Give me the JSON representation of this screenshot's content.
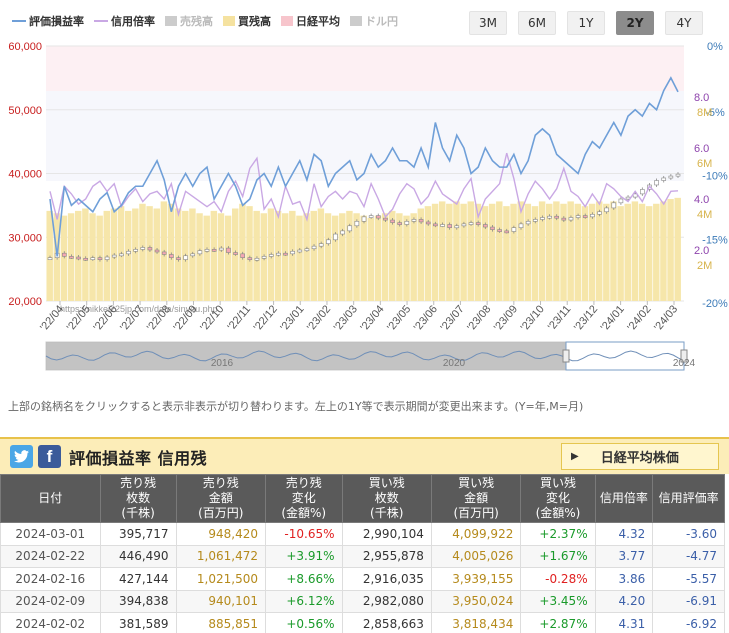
{
  "legend": {
    "items": [
      {
        "label": "評価損益率",
        "color": "#6f9fd8",
        "kind": "line",
        "active": true
      },
      {
        "label": "信用倍率",
        "color": "#c9a8e4",
        "kind": "line",
        "active": true
      },
      {
        "label": "売残高",
        "color": "#cccccc",
        "kind": "box",
        "active": false
      },
      {
        "label": "買残高",
        "color": "#f5e2a0",
        "kind": "box",
        "active": true
      },
      {
        "label": "日経平均",
        "color": "#f7c5cc",
        "kind": "box",
        "active": true
      },
      {
        "label": "ドル円",
        "color": "#cccccc",
        "kind": "box",
        "active": false
      }
    ]
  },
  "range_buttons": [
    {
      "label": "3M",
      "active": false
    },
    {
      "label": "6M",
      "active": false
    },
    {
      "label": "1Y",
      "active": false
    },
    {
      "label": "2Y",
      "active": true
    },
    {
      "label": "4Y",
      "active": false
    }
  ],
  "chart_data": {
    "type": "line",
    "watermark": "https://nikkei225jp.com/data/sinyou.php",
    "left_axis": {
      "ticks": [
        "60,000",
        "50,000",
        "40,000",
        "30,000",
        "20,000"
      ],
      "range": [
        20000,
        60000
      ],
      "color": "#c81e1e"
    },
    "right_axes": [
      {
        "name": "評価損益率",
        "ticks": [
          "0%",
          "-5%",
          "-10%",
          "-15%",
          "-20%"
        ],
        "range": [
          -20,
          0
        ],
        "color": "#3d7bb8"
      },
      {
        "name": "信用倍率",
        "ticks": [
          "8.0",
          "6.0",
          "4.0",
          "2.0"
        ],
        "range": [
          0,
          10
        ],
        "color": "#8e44ad"
      },
      {
        "name": "買残高",
        "ticks": [
          "8M",
          "6M",
          "4M",
          "2M"
        ],
        "range": [
          0,
          10
        ],
        "color": "#d7b34a"
      }
    ],
    "x_ticks": [
      "'22/04",
      "'22/05",
      "'22/06",
      "'22/07",
      "'22/08",
      "'22/09",
      "'22/10",
      "'22/11",
      "'22/12",
      "'23/01",
      "'23/02",
      "'23/03",
      "'23/04",
      "'23/05",
      "'23/06",
      "'23/07",
      "'23/08",
      "'23/09",
      "'23/10",
      "'23/11",
      "'23/12",
      "'24/01",
      "'24/02",
      "'24/03"
    ],
    "series": [
      {
        "name": "評価損益率",
        "unit": "%",
        "values": [
          -12,
          -16.5,
          -11,
          -12.5,
          -12,
          -12.5,
          -13,
          -12,
          -11.5,
          -13,
          -12.5,
          -11.5,
          -11,
          -11,
          -10,
          -9,
          -10.5,
          -13,
          -11,
          -10,
          -11,
          -10,
          -9.5,
          -12,
          -11,
          -10,
          -11,
          -12.5,
          -12,
          -10.5,
          -10,
          -11,
          -9.5,
          -11,
          -10,
          -9,
          -10.5,
          -8.5,
          -9,
          -11,
          -10,
          -9.5,
          -9,
          -10.5,
          -10,
          -8.5,
          -9.5,
          -9,
          -8,
          -9,
          -9,
          -9.5,
          -8,
          -9.5,
          -6,
          -8,
          -9,
          -7,
          -8,
          -10,
          -9.5,
          -8,
          -9,
          -9.5,
          -9.5,
          -8.5,
          -10,
          -9,
          -7,
          -6.5,
          -7,
          -8.5,
          -9,
          -9.5,
          -10,
          -8.5,
          -7.5,
          -8,
          -7,
          -6,
          -7,
          -5.5,
          -5,
          -5.5,
          -4.5,
          -5,
          -3.5,
          -2.5,
          -3.6
        ]
      },
      {
        "name": "信用倍率",
        "unit": "x",
        "values": [
          4.3,
          3.2,
          4.5,
          4.2,
          3.8,
          4.0,
          4.5,
          4.7,
          4.3,
          4.6,
          3.7,
          4.1,
          4.4,
          3.9,
          4.2,
          4.3,
          4.0,
          4.6,
          3.4,
          4.3,
          4.1,
          3.9,
          3.7,
          3.9,
          3.5,
          4.3,
          4.7,
          4.1,
          5.2,
          5.6,
          3.6,
          4.0,
          3.3,
          4.5,
          3.8,
          3.9,
          3.2,
          4.6,
          3.7,
          4.1,
          4.3,
          4.0,
          4.3,
          4.2,
          3.7,
          4.6,
          4.0,
          3.3,
          3.6,
          4.2,
          4.6,
          4.4,
          3.8,
          4.1,
          4.7,
          4.2,
          4.0,
          3.8,
          4.4,
          4.8,
          3.3,
          4.0,
          4.3,
          4.6,
          5.8,
          4.8,
          3.5,
          4.2,
          4.7,
          4.4,
          4.0,
          4.4,
          5.2,
          4.3,
          4.1,
          3.7,
          4.2,
          3.8,
          4.6,
          4.4,
          4.1,
          3.9,
          4.3,
          3.9,
          4.5,
          4.2,
          3.8,
          4.3,
          4.32
        ]
      },
      {
        "name": "買残高",
        "unit": "M株",
        "values": [
          3.8,
          3.7,
          3.6,
          3.7,
          3.8,
          3.9,
          3.7,
          3.6,
          3.8,
          3.9,
          4.0,
          3.8,
          3.9,
          4.1,
          4.0,
          3.9,
          4.2,
          4.1,
          3.9,
          3.8,
          3.9,
          3.7,
          3.6,
          3.8,
          3.7,
          3.6,
          3.9,
          4.1,
          4.0,
          3.8,
          3.7,
          3.9,
          3.8,
          3.7,
          3.8,
          3.6,
          3.7,
          3.8,
          3.9,
          3.7,
          3.6,
          3.7,
          3.8,
          3.7,
          3.6,
          3.5,
          3.6,
          3.7,
          3.8,
          3.7,
          3.6,
          3.7,
          3.9,
          4.0,
          4.1,
          4.2,
          4.1,
          4.2,
          4.1,
          4.2,
          4.1,
          4.0,
          4.1,
          4.2,
          4.0,
          4.1,
          4.2,
          4.1,
          4.0,
          4.2,
          4.1,
          4.2,
          4.1,
          4.2,
          4.1,
          4.0,
          4.1,
          4.2,
          4.1,
          4.2,
          4.0,
          4.1,
          4.2,
          4.1,
          4.0,
          4.1,
          4.2,
          4.3,
          4.35
        ]
      },
      {
        "name": "日経平均",
        "unit": "円",
        "values": [
          26800,
          27500,
          27000,
          26900,
          26700,
          26600,
          26800,
          26500,
          26900,
          27200,
          27400,
          27800,
          28100,
          28400,
          28000,
          27700,
          27300,
          26800,
          26500,
          27100,
          27400,
          27900,
          28100,
          28000,
          28300,
          27600,
          27400,
          26800,
          26500,
          26700,
          27000,
          27300,
          27500,
          27400,
          27800,
          28000,
          28200,
          28600,
          29000,
          29600,
          30500,
          31000,
          31800,
          32500,
          33200,
          33400,
          33000,
          32700,
          32300,
          32000,
          32500,
          32800,
          32400,
          32100,
          31900,
          32000,
          31500,
          31800,
          32100,
          32300,
          32000,
          31600,
          31200,
          31000,
          30900,
          31500,
          32100,
          32500,
          32800,
          33100,
          33300,
          33000,
          32700,
          33100,
          33400,
          33200,
          33600,
          34000,
          34600,
          35400,
          36000,
          36300,
          36800,
          37500,
          38200,
          38900,
          39300,
          39600,
          39900
        ]
      }
    ],
    "navigator": {
      "years": [
        "2016",
        "2020",
        "2024"
      ]
    }
  },
  "note": "上部の銘柄名をクリックすると表示非表示が切り替わります。左上の1Y等で表示期間が変更出来ます。(Y=年,M=月)",
  "section": {
    "title": "評価損益率 信用残",
    "nikkei_button": "日経平均株価",
    "twitter_icon": "t",
    "facebook_icon": "f"
  },
  "table": {
    "headers": [
      "日付",
      "売り残\n枚数\n(千株)",
      "売り残\n金額\n(百万円)",
      "売り残\n変化\n(金額%)",
      "買い残\n枚数\n(千株)",
      "買い残\n金額\n(百万円)",
      "買い残\n変化\n(金額%)",
      "信用倍率",
      "信用評価率"
    ],
    "rows": [
      [
        "2024-03-01",
        "395,717",
        "948,420",
        "-10.65%",
        "2,990,104",
        "4,099,922",
        "+2.37%",
        "4.32",
        "-3.60"
      ],
      [
        "2024-02-22",
        "446,490",
        "1,061,472",
        "+3.91%",
        "2,955,878",
        "4,005,026",
        "+1.67%",
        "3.77",
        "-4.77"
      ],
      [
        "2024-02-16",
        "427,144",
        "1,021,500",
        "+8.66%",
        "2,916,035",
        "3,939,155",
        "-0.28%",
        "3.86",
        "-5.57"
      ],
      [
        "2024-02-09",
        "394,838",
        "940,101",
        "+6.12%",
        "2,982,080",
        "3,950,024",
        "+3.45%",
        "4.20",
        "-6.91"
      ],
      [
        "2024-02-02",
        "381,589",
        "885,851",
        "+0.56%",
        "2,858,663",
        "3,818,434",
        "+2.87%",
        "4.31",
        "-6.92"
      ]
    ]
  }
}
